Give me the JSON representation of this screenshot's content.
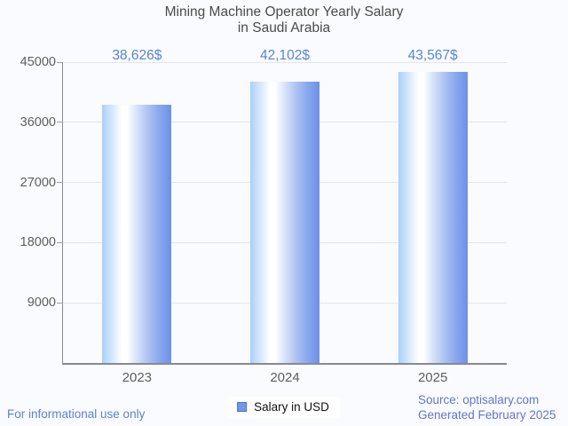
{
  "title": {
    "line1": "Mining Machine Operator Yearly Salary",
    "line2": "in Saudi Arabia"
  },
  "chart_data": {
    "type": "bar",
    "title": "Mining Machine Operator Yearly Salary in Saudi Arabia",
    "categories": [
      "2023",
      "2024",
      "2025"
    ],
    "values": [
      38626,
      42102,
      43567
    ],
    "value_labels": [
      "38,626$",
      "42,102$",
      "43,567$"
    ],
    "series_name": "Salary in USD",
    "xlabel": "",
    "ylabel": "",
    "ylim": [
      0,
      45000
    ],
    "yticks": [
      9000,
      18000,
      27000,
      36000,
      45000
    ],
    "grid": true,
    "legend_position": "bottom",
    "bar_color_gradient": [
      "#a9cff8",
      "#ffffff",
      "#6c91e9"
    ],
    "value_label_color": "#5586d7"
  },
  "legend": {
    "label": "Salary in USD",
    "swatch_color": "#6f97e3"
  },
  "footer": {
    "disclaimer": "For informational use only",
    "source_line1": "Source: optisalary.com",
    "source_line2": "Generated February 2025"
  }
}
